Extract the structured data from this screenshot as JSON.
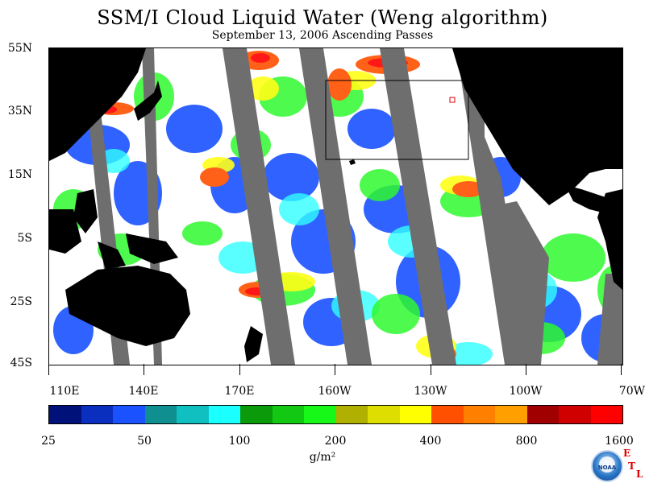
{
  "title": "SSM/I Cloud Liquid Water (Weng algorithm)",
  "subtitle": "September 13, 2006  Ascending Passes",
  "map": {
    "lat_labels": [
      "55N",
      "35N",
      "15N",
      "5S",
      "25S",
      "45S"
    ],
    "lon_labels": [
      "110E",
      "140E",
      "170E",
      "160W",
      "130W",
      "100W",
      "70W"
    ],
    "land_color": "#000000",
    "no_data_color": "#6e6e6e",
    "ocean_color": "#ffffff"
  },
  "colorbar": {
    "colors": [
      "#00127a",
      "#0a2fbf",
      "#1a52ff",
      "#0f8f8f",
      "#10bfbf",
      "#1affff",
      "#0a9a0a",
      "#12c812",
      "#18f818",
      "#b0b000",
      "#dede00",
      "#ffff00",
      "#ff5000",
      "#ff7f00",
      "#ffa000",
      "#a00000",
      "#d00000",
      "#ff0000"
    ],
    "labels": [
      "25",
      "50",
      "100",
      "200",
      "400",
      "800",
      "1600"
    ]
  },
  "units": "g/m²",
  "logo": {
    "icon": "noaa-logo-icon",
    "text": "NOAA",
    "etl": [
      "E",
      "T",
      "L"
    ]
  }
}
